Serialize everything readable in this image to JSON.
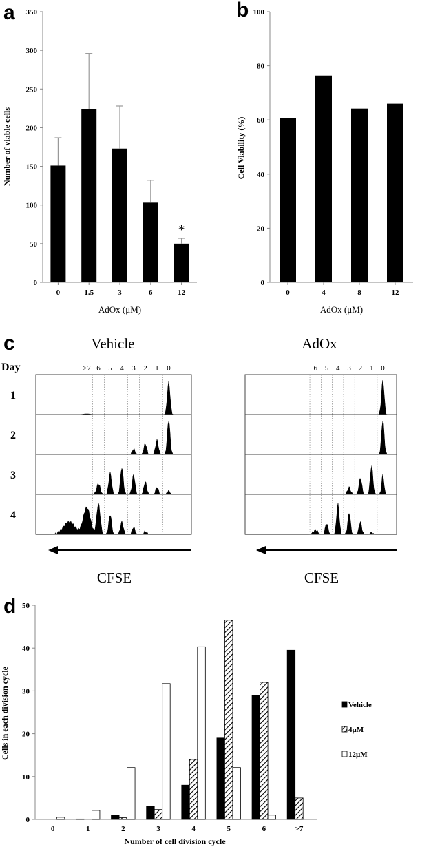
{
  "colors": {
    "bar": "#000000",
    "axis": "#888888",
    "empty_bar": "#ffffff",
    "hatch": "#000000"
  },
  "panels": {
    "a": "a",
    "b": "b",
    "c": "c",
    "d": "d"
  },
  "chart_data": [
    {
      "id": "a",
      "type": "bar",
      "categories": [
        "0",
        "1.5",
        "3",
        "6",
        "12"
      ],
      "values": [
        151,
        224,
        173,
        103,
        50
      ],
      "errors": [
        36,
        72,
        55,
        29,
        7
      ],
      "significance": [
        "",
        "",
        "",
        "",
        "*"
      ],
      "ylabel": "Number of  viable cells",
      "xlabel": "AdOx (μM)",
      "ylim": [
        0,
        350
      ],
      "yticks": [
        "0",
        "50",
        "100",
        "150",
        "200",
        "250",
        "300",
        "350"
      ]
    },
    {
      "id": "b",
      "type": "bar",
      "categories": [
        "0",
        "4",
        "8",
        "12"
      ],
      "values": [
        60.6,
        76.4,
        64.2,
        66.0
      ],
      "ylabel": "Cell Viability (%)",
      "xlabel": "AdOx (μM)",
      "ylim": [
        0,
        100
      ],
      "yticks": [
        "0",
        "20",
        "40",
        "60",
        "80",
        "100"
      ]
    },
    {
      "id": "c",
      "type": "area",
      "row_header": "Day",
      "days": [
        "1",
        "2",
        "3",
        "4"
      ],
      "xlabel": "CFSE",
      "groups": [
        {
          "title": "Vehicle",
          "cycle_labels": [
            ">7",
            "6",
            "5",
            "4",
            "3",
            "2",
            "1",
            "0"
          ],
          "rows": [
            [
              {
                "c": 7,
                "a": 0.02,
                "w": 0.3
              },
              {
                "c": 0,
                "a": 0.9,
                "w": 0.12
              }
            ],
            [
              {
                "c": 3,
                "a": 0.15,
                "w": 0.12
              },
              {
                "c": 2,
                "a": 0.3,
                "w": 0.12
              },
              {
                "c": 1,
                "a": 0.4,
                "w": 0.12
              },
              {
                "c": 0,
                "a": 0.95,
                "w": 0.12
              }
            ],
            [
              {
                "c": 6,
                "a": 0.3,
                "w": 0.15
              },
              {
                "c": 5,
                "a": 0.6,
                "w": 0.12
              },
              {
                "c": 4,
                "a": 0.75,
                "w": 0.12
              },
              {
                "c": 3,
                "a": 0.55,
                "w": 0.12
              },
              {
                "c": 2,
                "a": 0.35,
                "w": 0.12
              },
              {
                "c": 1,
                "a": 0.2,
                "w": 0.12
              },
              {
                "c": 0,
                "a": 0.1,
                "w": 0.12
              }
            ],
            [
              {
                "c": 8.5,
                "a": 0.35,
                "w": 0.5
              },
              {
                "c": 7,
                "a": 0.75,
                "w": 0.3
              },
              {
                "c": 6,
                "a": 0.85,
                "w": 0.15
              },
              {
                "c": 5,
                "a": 0.55,
                "w": 0.12
              },
              {
                "c": 4,
                "a": 0.35,
                "w": 0.12
              },
              {
                "c": 3,
                "a": 0.2,
                "w": 0.12
              },
              {
                "c": 2,
                "a": 0.08,
                "w": 0.12
              }
            ]
          ]
        },
        {
          "title": "AdOx",
          "cycle_labels": [
            "6",
            "5",
            "4",
            "3",
            "2",
            "1",
            "0"
          ],
          "rows": [
            [
              {
                "c": 0,
                "a": 0.95,
                "w": 0.12
              }
            ],
            [
              {
                "c": 0,
                "a": 0.95,
                "w": 0.12
              }
            ],
            [
              {
                "c": 3,
                "a": 0.2,
                "w": 0.13
              },
              {
                "c": 2,
                "a": 0.45,
                "w": 0.13
              },
              {
                "c": 1,
                "a": 0.8,
                "w": 0.12
              },
              {
                "c": 0,
                "a": 0.55,
                "w": 0.1
              }
            ],
            [
              {
                "c": 6,
                "a": 0.12,
                "w": 0.2
              },
              {
                "c": 5,
                "a": 0.3,
                "w": 0.13
              },
              {
                "c": 4,
                "a": 0.85,
                "w": 0.12
              },
              {
                "c": 3,
                "a": 0.6,
                "w": 0.12
              },
              {
                "c": 2,
                "a": 0.35,
                "w": 0.12
              },
              {
                "c": 1,
                "a": 0.05,
                "w": 0.12
              }
            ]
          ]
        }
      ]
    },
    {
      "id": "d",
      "type": "bar",
      "categories": [
        "0",
        "1",
        "2",
        "3",
        "4",
        "5",
        "6",
        ">7"
      ],
      "series": [
        {
          "name": "Vehicle",
          "style": "solid",
          "values": [
            0,
            0.1,
            0.9,
            3,
            8,
            19,
            29,
            39.5
          ]
        },
        {
          "name": "4μM",
          "style": "hatched",
          "values": [
            0,
            0,
            0.4,
            2.3,
            14,
            46.5,
            32,
            5
          ]
        },
        {
          "name": "12μM",
          "style": "open",
          "values": [
            0.5,
            2.1,
            12.1,
            31.7,
            40.3,
            12.1,
            1,
            0
          ]
        }
      ],
      "ylabel": "Cells in each division cycle",
      "xlabel": "Number of cell division cycle",
      "ylim": [
        0,
        50
      ],
      "yticks": [
        "0",
        "10",
        "20",
        "30",
        "40",
        "50"
      ],
      "legend_position": "right"
    }
  ]
}
